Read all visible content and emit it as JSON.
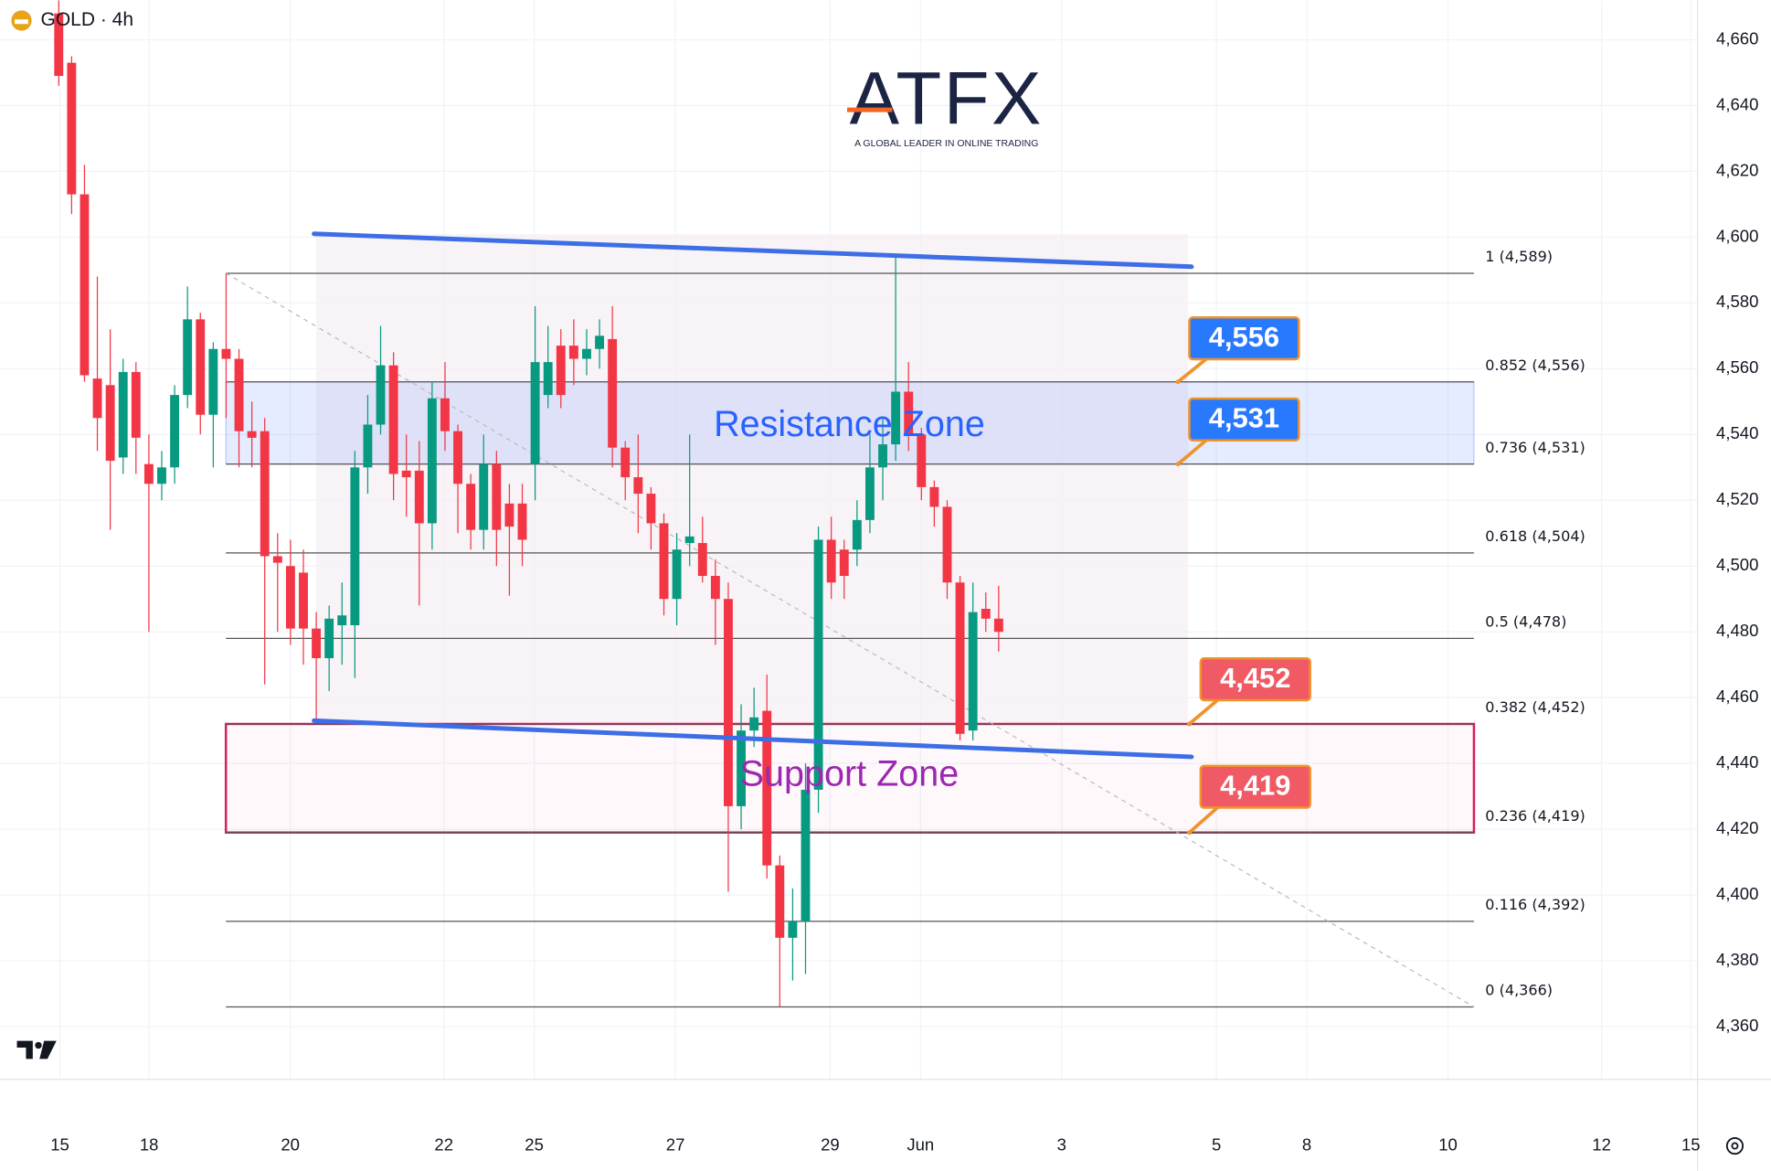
{
  "chart_data": {
    "type": "candlestick",
    "title": "GOLD · 4h",
    "logo_text": "ATFX",
    "logo_tagline": "A GLOBAL LEADER IN ONLINE TRADING",
    "ylim": [
      4344,
      4672
    ],
    "yticks": [
      {
        "value": 4660,
        "label": "4,660"
      },
      {
        "value": 4640,
        "label": "4,640"
      },
      {
        "value": 4620,
        "label": "4,620"
      },
      {
        "value": 4600,
        "label": "4,600"
      },
      {
        "value": 4580,
        "label": "4,580"
      },
      {
        "value": 4560,
        "label": "4,560"
      },
      {
        "value": 4540,
        "label": "4,540"
      },
      {
        "value": 4520,
        "label": "4,520"
      },
      {
        "value": 4500,
        "label": "4,500"
      },
      {
        "value": 4480,
        "label": "4,480"
      },
      {
        "value": 4460,
        "label": "4,460"
      },
      {
        "value": 4440,
        "label": "4,440"
      },
      {
        "value": 4420,
        "label": "4,420"
      },
      {
        "value": 4400,
        "label": "4,400"
      },
      {
        "value": 4380,
        "label": "4,380"
      },
      {
        "value": 4360,
        "label": "4,360"
      }
    ],
    "xtick_labels": [
      "15",
      "18",
      "20",
      "22",
      "25",
      "27",
      "29",
      "Jun",
      "3",
      "5",
      "8",
      "10",
      "12",
      "15"
    ],
    "grid": true,
    "up_color": "#089981",
    "down_color": "#f23645",
    "open": [
      4668,
      4653,
      4613,
      4557,
      4555,
      4533,
      4559,
      4531,
      4525,
      4530,
      4552,
      4575,
      4546,
      4566,
      4563,
      4541,
      4541,
      4503,
      4500,
      4498,
      4481,
      4472,
      4482,
      4482,
      4530,
      4543,
      4561,
      4529,
      4529,
      4513,
      4551,
      4541,
      4525,
      4511,
      4531,
      4519,
      4519,
      4531,
      4552,
      4567,
      4567,
      4563,
      4566,
      4569,
      4536,
      4527,
      4522,
      4513,
      4490,
      4507,
      4507,
      4497,
      4490,
      4427,
      4450,
      4456,
      4409,
      4387,
      4392,
      4432,
      4508,
      4505,
      4505,
      4514,
      4530,
      4537,
      4553,
      4540,
      4524,
      4518,
      4495,
      4450,
      4487,
      4484
    ],
    "high": [
      4672,
      4655,
      4622,
      4588,
      4572,
      4563,
      4562,
      4540,
      4535,
      4555,
      4585,
      4577,
      4568,
      4589,
      4566,
      4550,
      4545,
      4510,
      4508,
      4505,
      4486,
      4488,
      4495,
      4535,
      4552,
      4573,
      4565,
      4540,
      4538,
      4556,
      4562,
      4543,
      4528,
      4540,
      4535,
      4525,
      4525,
      4579,
      4573,
      4572,
      4575,
      4572,
      4575,
      4579,
      4538,
      4540,
      4524,
      4516,
      4510,
      4540,
      4515,
      4502,
      4495,
      4458,
      4463,
      4467,
      4412,
      4402,
      4440,
      4512,
      4515,
      4508,
      4520,
      4540,
      4545,
      4594,
      4562,
      4542,
      4526,
      4520,
      4497,
      4495,
      4492,
      4494
    ],
    "low": [
      4646,
      4607,
      4556,
      4535,
      4511,
      4528,
      4528,
      4480,
      4520,
      4525,
      4548,
      4540,
      4530,
      4545,
      4530,
      4530,
      4464,
      4480,
      4476,
      4470,
      4453,
      4462,
      4470,
      4466,
      4522,
      4540,
      4520,
      4515,
      4488,
      4505,
      4535,
      4510,
      4505,
      4505,
      4500,
      4491,
      4500,
      4520,
      4548,
      4548,
      4555,
      4558,
      4560,
      4530,
      4520,
      4510,
      4505,
      4485,
      4482,
      4500,
      4495,
      4476,
      4401,
      4420,
      4445,
      4405,
      4366,
      4374,
      4376,
      4425,
      4490,
      4490,
      4500,
      4510,
      4520,
      4532,
      4535,
      4520,
      4512,
      4490,
      4447,
      4447,
      4480,
      4474
    ],
    "close": [
      4649,
      4613,
      4558,
      4545,
      4532,
      4559,
      4539,
      4525,
      4530,
      4552,
      4575,
      4546,
      4566,
      4563,
      4541,
      4539,
      4503,
      4501,
      4481,
      4481,
      4472,
      4484,
      4485,
      4530,
      4543,
      4561,
      4528,
      4527,
      4513,
      4551,
      4541,
      4525,
      4511,
      4531,
      4511,
      4512,
      4508,
      4562,
      4562,
      4552,
      4563,
      4566,
      4570,
      4536,
      4527,
      4522,
      4513,
      4490,
      4505,
      4509,
      4497,
      4490,
      4427,
      4450,
      4454,
      4409,
      4387,
      4392,
      4432,
      4508,
      4495,
      4497,
      4514,
      4530,
      4537,
      4553,
      4540,
      4524,
      4518,
      4495,
      4449,
      4486,
      4484,
      4480
    ],
    "fib_levels": [
      {
        "value": 4589,
        "label": "1 (4,589)"
      },
      {
        "value": 4556,
        "label": "0.852 (4,556)"
      },
      {
        "value": 4531,
        "label": "0.736 (4,531)"
      },
      {
        "value": 4504,
        "label": "0.618 (4,504)"
      },
      {
        "value": 4478,
        "label": "0.5 (4,478)"
      },
      {
        "value": 4452,
        "label": "0.382 (4,452)"
      },
      {
        "value": 4419,
        "label": "0.236 (4,419)"
      },
      {
        "value": 4392,
        "label": "0.116 (4,392)"
      },
      {
        "value": 4366,
        "label": "0 (4,366)"
      }
    ],
    "zones": [
      {
        "label": "Resistance Zone",
        "from": 4531,
        "to": 4556,
        "color": "#2962ff"
      },
      {
        "label": "Support Zone",
        "from": 4419,
        "to": 4452,
        "color": "#d81b60",
        "text_color": "#9c27b0"
      }
    ],
    "trendlines": [
      {
        "values": [
          4601,
          4591
        ],
        "color": "#3d6ee6"
      },
      {
        "values": [
          4453,
          4442
        ],
        "color": "#3d6ee6"
      }
    ],
    "price_badges": [
      {
        "value": 4556,
        "label": "4,556",
        "color": "#2979ff"
      },
      {
        "value": 4531,
        "label": "4,531",
        "color": "#2979ff"
      },
      {
        "value": 4452,
        "label": "4,452",
        "color": "#f05a64"
      },
      {
        "value": 4419,
        "label": "4,419",
        "color": "#f05a64"
      }
    ]
  }
}
